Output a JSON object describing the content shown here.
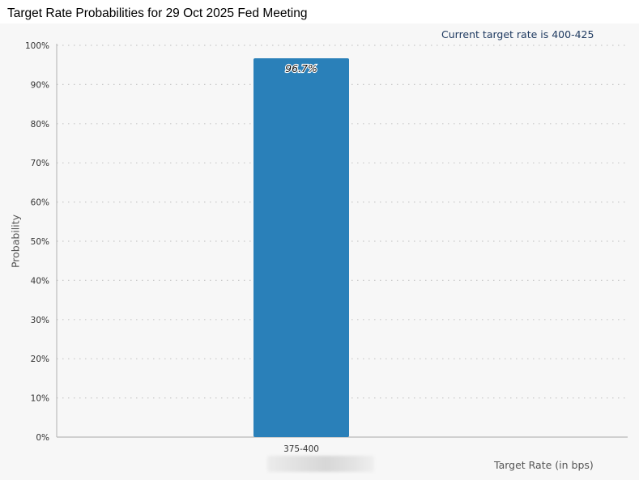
{
  "title": "Target Rate Probabilities for 29 Oct 2025 Fed Meeting",
  "current_target_label": "Current target rate is 400-425",
  "colors": {
    "bar": "#2a80b9",
    "background": "#f7f7f7",
    "grid": "#c8c8c8",
    "axis_text": "#555555",
    "accent_text": "#1f3a60"
  },
  "chart_data": {
    "type": "bar",
    "title": "Target Rate Probabilities for 29 Oct 2025 Fed Meeting",
    "xlabel": "Target Rate (in bps)",
    "ylabel": "Probability",
    "categories": [
      "375-400"
    ],
    "values": [
      96.7
    ],
    "data_labels": [
      "96.7%"
    ],
    "ylim": [
      0,
      100
    ],
    "y_ticks": [
      0,
      10,
      20,
      30,
      40,
      50,
      60,
      70,
      80,
      90,
      100
    ],
    "y_tick_labels": [
      "0%",
      "10%",
      "20%",
      "30%",
      "40%",
      "50%",
      "60%",
      "70%",
      "80%",
      "90%",
      "100%"
    ],
    "grid": true,
    "grid_style": "dotted",
    "legend": "none"
  }
}
